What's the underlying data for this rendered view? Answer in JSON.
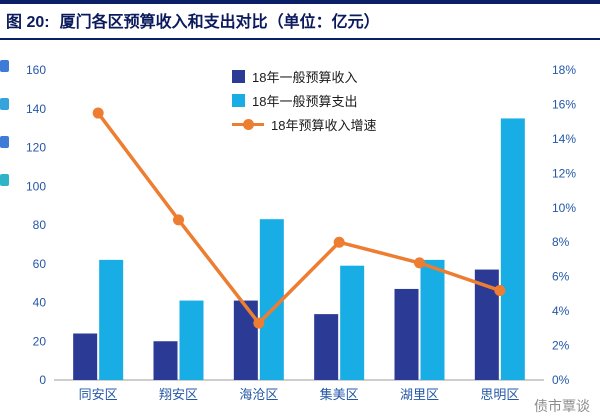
{
  "header": {
    "figure_label": "图 20:",
    "title": "厦门各区预算收入和支出对比（单位：亿元）"
  },
  "watermark": "债市覃谈",
  "colors": {
    "revenue": "#2b3a94",
    "expenditure": "#18aee5",
    "growth": "#ed7d31",
    "title": "#0a1a5c",
    "rule": "#0b1f66",
    "axis_label": "#2457a7",
    "axis_line": "#9e9e9e",
    "watermark": "#8c8c8c",
    "edge_icons": [
      "#3e7bd6",
      "#35a3dc",
      "#3e7bd6",
      "#2fb3c9"
    ]
  },
  "chart_data": {
    "type": "bar",
    "subtype": "grouped-bars-with-line",
    "categories": [
      "同安区",
      "翔安区",
      "海沧区",
      "集美区",
      "湖里区",
      "思明区"
    ],
    "series": [
      {
        "name": "18年一般预算收入",
        "type": "bar",
        "axis": "left",
        "values": [
          24,
          20,
          41,
          34,
          47,
          57
        ]
      },
      {
        "name": "18年一般预算支出",
        "type": "bar",
        "axis": "left",
        "values": [
          62,
          41,
          83,
          59,
          62,
          135
        ]
      },
      {
        "name": "18年预算收入增速",
        "type": "line",
        "axis": "right",
        "values": [
          15.5,
          9.3,
          3.3,
          8.0,
          6.8,
          5.2
        ]
      }
    ],
    "left_axis": {
      "min": 0,
      "max": 160,
      "step": 20,
      "ticks": [
        "0",
        "20",
        "40",
        "60",
        "80",
        "100",
        "120",
        "140",
        "160"
      ]
    },
    "right_axis": {
      "min": 0,
      "max": 18,
      "step": 2,
      "ticks": [
        "0%",
        "2%",
        "4%",
        "6%",
        "8%",
        "10%",
        "12%",
        "14%",
        "16%",
        "18%"
      ]
    },
    "grid": false,
    "legend_position": "top-center",
    "title": "厦门各区预算收入和支出对比",
    "unit": "亿元"
  }
}
